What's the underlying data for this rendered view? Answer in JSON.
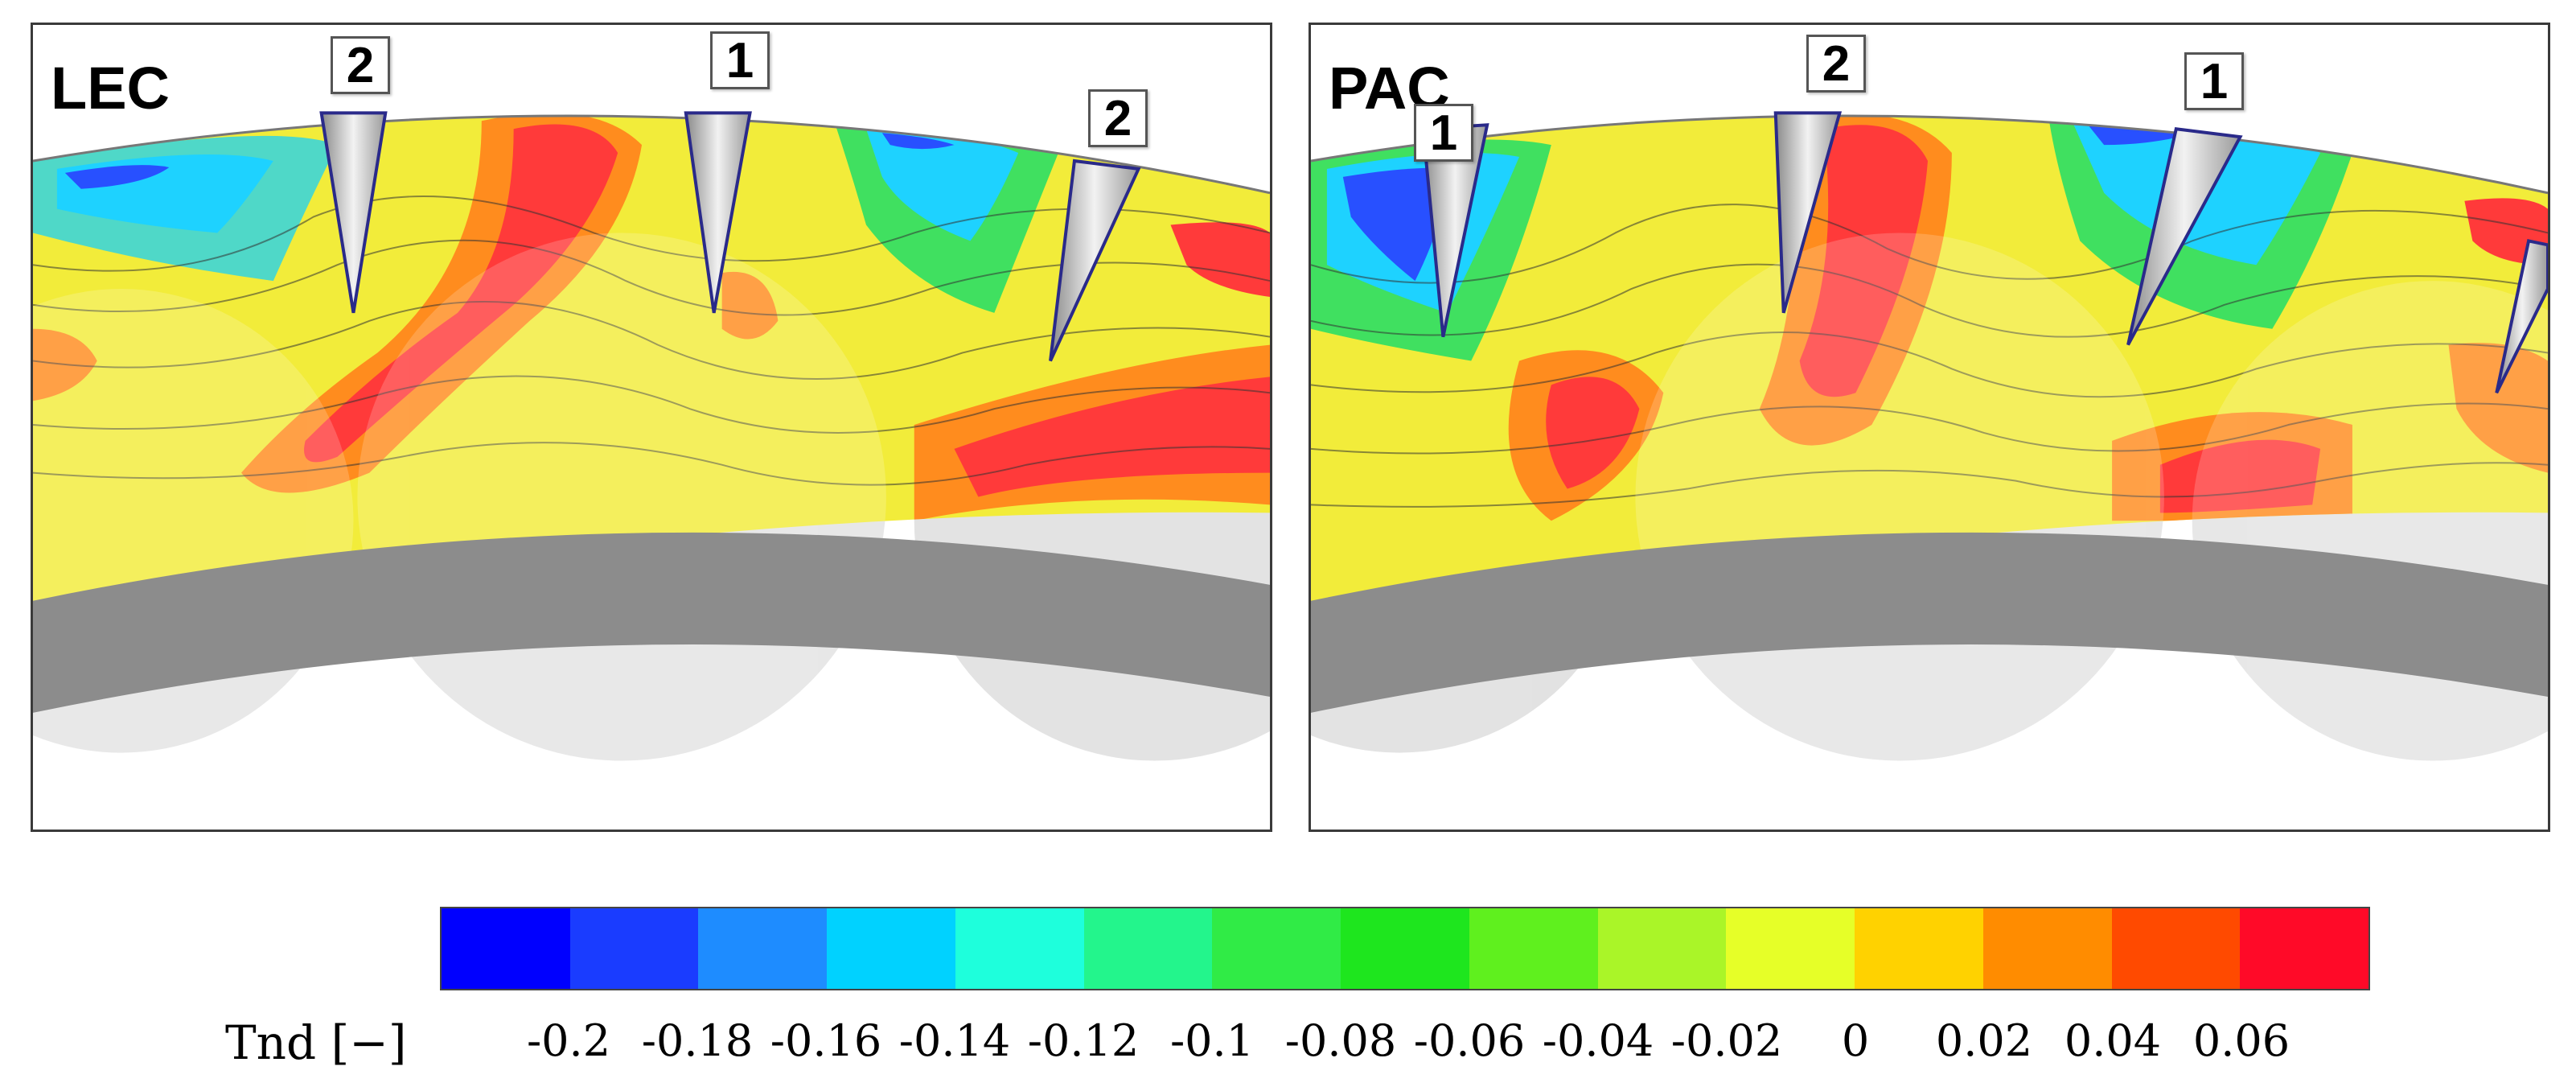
{
  "panels": [
    {
      "title": "LEC",
      "markers": [
        "2",
        "1",
        "2"
      ]
    },
    {
      "title": "PAC",
      "markers": [
        "1",
        "2",
        "1"
      ]
    }
  ],
  "colorbar": {
    "label": "Tnd [−]",
    "ticks": [
      "-0.2",
      "-0.18",
      "-0.16",
      "-0.14",
      "-0.12",
      "-0.1",
      "-0.08",
      "-0.06",
      "-0.04",
      "-0.02",
      "0",
      "0.02",
      "0.04",
      "0.06"
    ],
    "colors": [
      "#0000ff",
      "#1a3cff",
      "#1e8cff",
      "#00d2ff",
      "#1effdc",
      "#23f58c",
      "#30eb46",
      "#1ee61e",
      "#5ff01e",
      "#aaf528",
      "#e6ff28",
      "#ffd200",
      "#ff8c00",
      "#ff4a00",
      "#ff0a28"
    ]
  }
}
